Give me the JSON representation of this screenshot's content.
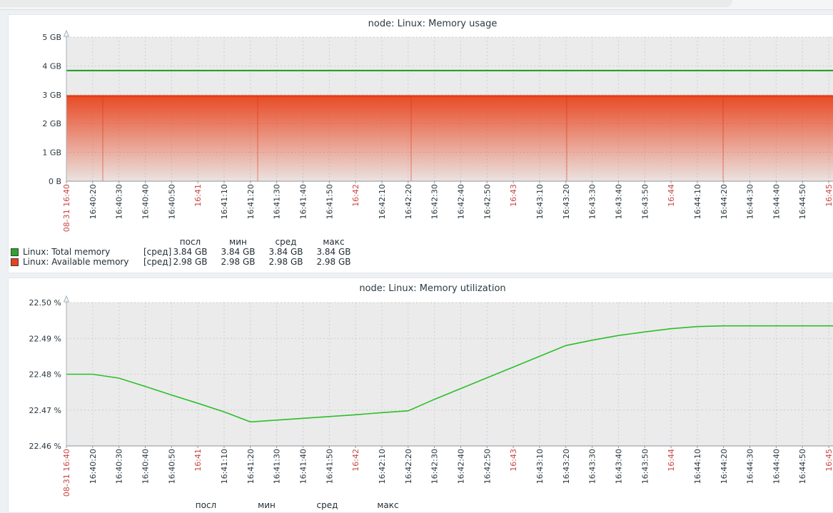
{
  "chart_data": [
    {
      "type": "area+line",
      "title": "node: Linux: Memory usage",
      "grid": true,
      "ylim": [
        0,
        5
      ],
      "y_unit": "GB",
      "y_ticks": [
        "5 GB",
        "4 GB",
        "3 GB",
        "2 GB",
        "1 GB",
        "0 B"
      ],
      "x_ticks": [
        "08-31 16:40",
        "16:40:20",
        "16:40:30",
        "16:40:40",
        "16:40:50",
        "16:41",
        "16:41:10",
        "16:41:20",
        "16:41:30",
        "16:41:40",
        "16:41:50",
        "16:42",
        "16:42:10",
        "16:42:20",
        "16:42:30",
        "16:42:40",
        "16:42:50",
        "16:43",
        "16:43:10",
        "16:43:20",
        "16:43:30",
        "16:43:40",
        "16:43:50",
        "16:44",
        "16:44:10",
        "16:44:20",
        "16:44:30",
        "16:44:40",
        "16:44:50",
        "16:45"
      ],
      "x_red_tick_indices": [
        0,
        5,
        11,
        17,
        23,
        29
      ],
      "series": [
        {
          "name": "Linux: Total memory",
          "type": "line",
          "color": "#1A9C1A",
          "constant_value": 3.84,
          "unit": "GB"
        },
        {
          "name": "Linux: Available memory",
          "type": "gradient_area",
          "color": "#E8431D",
          "top_line_color": "#E63A10",
          "constant_value": 2.98,
          "unit": "GB"
        }
      ],
      "legend": {
        "stat_headers": [
          "посл",
          "мин",
          "сред",
          "макс"
        ],
        "rows": [
          {
            "swatch_color": "#2EA32E",
            "name": "Linux: Total memory",
            "param": "[сред]",
            "values": [
              "3.84 GB",
              "3.84 GB",
              "3.84 GB",
              "3.84 GB"
            ]
          },
          {
            "swatch_color": "#E8431D",
            "name": "Linux: Available memory",
            "param": "[сред]",
            "values": [
              "2.98 GB",
              "2.98 GB",
              "2.98 GB",
              "2.98 GB"
            ]
          }
        ]
      }
    },
    {
      "type": "line",
      "title": "node: Linux: Memory utilization",
      "grid": true,
      "ylim": [
        22.46,
        22.5
      ],
      "y_unit": "%",
      "y_ticks": [
        "22.50 %",
        "22.49 %",
        "22.48 %",
        "22.47 %",
        "22.46 %"
      ],
      "x_ticks": [
        "08-31 16:40",
        "16:40:20",
        "16:40:30",
        "16:40:40",
        "16:40:50",
        "16:41",
        "16:41:10",
        "16:41:20",
        "16:41:30",
        "16:41:40",
        "16:41:50",
        "16:42",
        "16:42:10",
        "16:42:20",
        "16:42:30",
        "16:42:40",
        "16:42:50",
        "16:43",
        "16:43:10",
        "16:43:20",
        "16:43:30",
        "16:43:40",
        "16:43:50",
        "16:44",
        "16:44:10",
        "16:44:20",
        "16:44:30",
        "16:44:40",
        "16:44:50",
        "16:45"
      ],
      "x_red_tick_indices": [
        0,
        5,
        11,
        17,
        23,
        29
      ],
      "series": [
        {
          "name": "Linux: Memory utilization",
          "type": "line",
          "color": "#2ABF2A",
          "unit": "%",
          "values": [
            22.48,
            22.48,
            22.4789,
            22.4766,
            22.4742,
            22.4719,
            22.4695,
            22.4667,
            22.4672,
            22.4677,
            22.4682,
            22.4687,
            22.4693,
            22.4698,
            22.473,
            22.476,
            22.479,
            22.482,
            22.485,
            22.488,
            22.4895,
            22.4908,
            22.4918,
            22.4927,
            22.4933,
            22.4935,
            22.4935,
            22.4935,
            22.4935,
            22.4935
          ]
        }
      ],
      "legend": {
        "stat_headers": [
          "посл",
          "мин",
          "сред",
          "макс"
        ],
        "rows": []
      }
    }
  ]
}
